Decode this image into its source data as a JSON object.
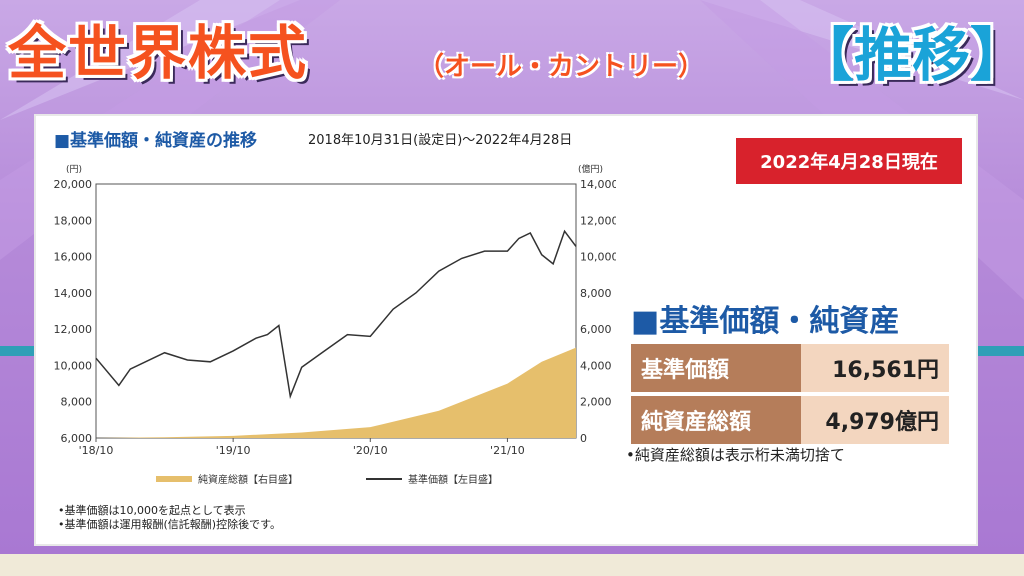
{
  "header": {
    "title": "全世界株式",
    "subtitle": "（オール・カントリー）",
    "tag": "【推移】"
  },
  "panel": {
    "heading": "■基準価額・純資産の推移",
    "range": "2018年10月31日(設定日)～2022年4月28日",
    "badge": "2022年4月28日現在",
    "summary_heading": "■基準価額・純資産",
    "rows": [
      {
        "label": "基準価額",
        "value": "16,561円"
      },
      {
        "label": "純資産総額",
        "value": "4,979億円"
      }
    ],
    "summary_note": "•純資産総額は表示桁未満切捨て",
    "footnotes": [
      "•基準価額は10,000を起点として表示",
      "•基準価額は運用報酬(信託報酬)控除後です。"
    ]
  },
  "chart_data": {
    "type": "line",
    "x_ticks": [
      "'18/10",
      "'19/10",
      "'20/10",
      "'21/10"
    ],
    "left_axis": {
      "unit": "(円)",
      "min": 6000,
      "max": 20000,
      "ticks": [
        "6,000",
        "8,000",
        "10,000",
        "12,000",
        "14,000",
        "16,000",
        "18,000",
        "20,000"
      ]
    },
    "right_axis": {
      "unit": "(億円)",
      "min": 0,
      "max": 14000,
      "ticks": [
        "0",
        "2,000",
        "4,000",
        "6,000",
        "8,000",
        "10,000",
        "12,000",
        "14,000"
      ]
    },
    "legend": [
      "純資産総額【右目盛】",
      "基準価額【左目盛】"
    ],
    "series": [
      {
        "name": "基準価額【左目盛】",
        "axis": "left",
        "color": "#333333",
        "x": [
          "2018-10",
          "2018-12",
          "2019-01",
          "2019-04",
          "2019-06",
          "2019-08",
          "2019-10",
          "2019-12",
          "2020-01",
          "2020-02",
          "2020-03",
          "2020-04",
          "2020-06",
          "2020-08",
          "2020-10",
          "2020-12",
          "2021-02",
          "2021-04",
          "2021-06",
          "2021-08",
          "2021-10",
          "2021-11",
          "2021-12",
          "2022-01",
          "2022-02",
          "2022-03",
          "2022-04"
        ],
        "values": [
          10400,
          8900,
          9800,
          10700,
          10300,
          10200,
          10800,
          11500,
          11700,
          12200,
          8300,
          9900,
          10800,
          11700,
          11600,
          13100,
          14000,
          15200,
          15900,
          16300,
          16300,
          17000,
          17300,
          16100,
          15600,
          17400,
          16561
        ]
      },
      {
        "name": "純資産総額【右目盛】",
        "axis": "right",
        "color": "#e6bf6c",
        "x": [
          "2018-10",
          "2019-04",
          "2019-10",
          "2020-04",
          "2020-10",
          "2021-04",
          "2021-10",
          "2022-01",
          "2022-04"
        ],
        "values": [
          0,
          40,
          120,
          300,
          600,
          1500,
          3000,
          4200,
          4979
        ]
      }
    ]
  },
  "colors": {
    "accent_blue": "#1d5aa6",
    "badge_red": "#d8222c",
    "title_orange": "#f5521f",
    "tag_blue": "#1aa3d8"
  }
}
